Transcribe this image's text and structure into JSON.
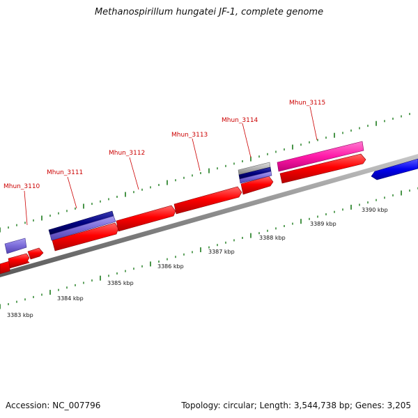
{
  "title": "Methanospirillum hungatei JF-1, complete genome",
  "footer": {
    "accession": "Accession: NC_007796",
    "topology": "Topology: circular; Length: 3,544,738 bp; Genes: 3,205"
  },
  "scale_labels": [
    "3383 kbp",
    "3384 kbp",
    "3385 kbp",
    "3386 kbp",
    "3387 kbp",
    "3388 kbp",
    "3389 kbp",
    "3390 kbp"
  ],
  "locus_labels": [
    "Mhun_3110",
    "Mhun_3111",
    "Mhun_3112",
    "Mhun_3113",
    "Mhun_3114",
    "Mhun_3115"
  ],
  "colors": {
    "cds": "#ff0000",
    "cds_dark_blue": "#000080",
    "cds_light_purple": "#7a6ad8",
    "cds_pink": "#ff1aa8",
    "cds_gray": "#b0b0b0",
    "cds_blue": "#0000ee",
    "backbone": "#888888",
    "ticks": "#1a7a1a",
    "labels": "#cc0000"
  }
}
